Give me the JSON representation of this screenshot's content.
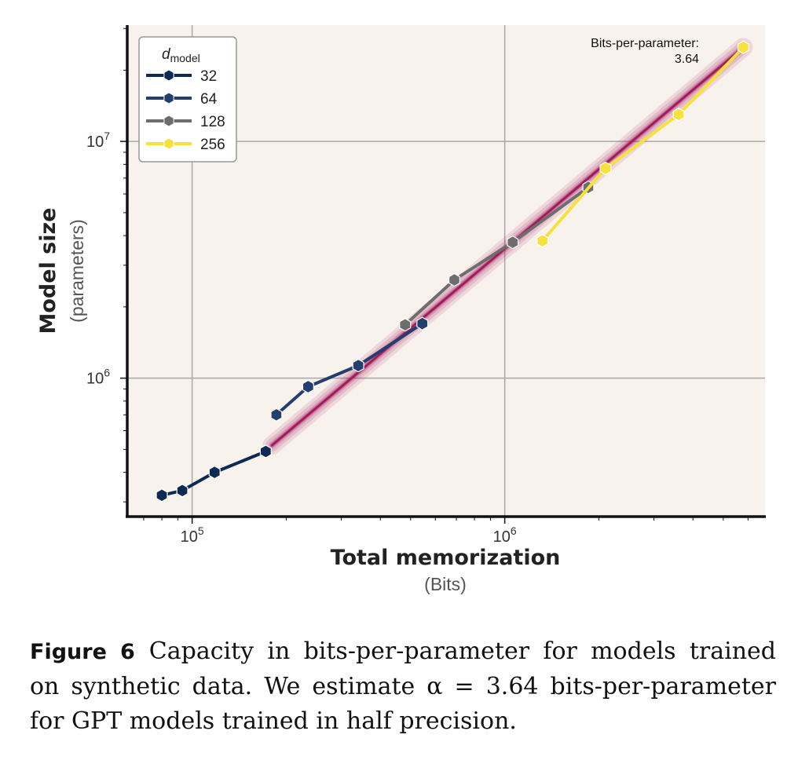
{
  "chart_data": {
    "type": "line",
    "xlabel": "Total memorization",
    "xlabel_unit": "(Bits)",
    "ylabel": "Model size",
    "ylabel_unit": "(parameters)",
    "x_scale": "log",
    "y_scale": "log",
    "xlim": [
      62000,
      6800000
    ],
    "ylim": [
      260000,
      31000000
    ],
    "x_ticks": [
      {
        "base": "10",
        "exp": "5",
        "value": 100000
      },
      {
        "base": "10",
        "exp": "6",
        "value": 1000000
      }
    ],
    "y_ticks": [
      {
        "base": "10",
        "exp": "6",
        "value": 1000000
      },
      {
        "base": "10",
        "exp": "7",
        "value": 10000000
      }
    ],
    "grid": true,
    "legend": {
      "title_main": "d",
      "title_sub": "model",
      "placement": "top-left"
    },
    "series": [
      {
        "name": "32",
        "color": "#0e2a54",
        "x": [
          80000,
          93000,
          118000,
          172000
        ],
        "y": [
          320000,
          335000,
          400000,
          490000
        ]
      },
      {
        "name": "64",
        "color": "#243e6e",
        "x": [
          186000,
          235000,
          340000,
          545000
        ],
        "y": [
          700000,
          920000,
          1130000,
          1700000
        ]
      },
      {
        "name": "128",
        "color": "#6d6d6d",
        "x": [
          480000,
          690000,
          1060000,
          1850000
        ],
        "y": [
          1680000,
          2600000,
          3750000,
          6400000
        ]
      },
      {
        "name": "256",
        "color": "#f7e13d",
        "x": [
          1320000,
          2100000,
          3600000,
          5800000
        ],
        "y": [
          3800000,
          7700000,
          13000000,
          25000000
        ]
      }
    ],
    "fit_line": {
      "x": [
        180000,
        5800000
      ],
      "y": [
        520000,
        25000000
      ],
      "color": "#a2185a"
    },
    "annotation": {
      "title": "Bits-per-parameter:",
      "value": "3.64"
    }
  },
  "caption": {
    "label": "Figure 6",
    "text": "Capacity in bits-per-parameter for models trained on synthetic data. We estimate α = 3.64 bits-per-parameter for GPT models trained in half precision."
  }
}
